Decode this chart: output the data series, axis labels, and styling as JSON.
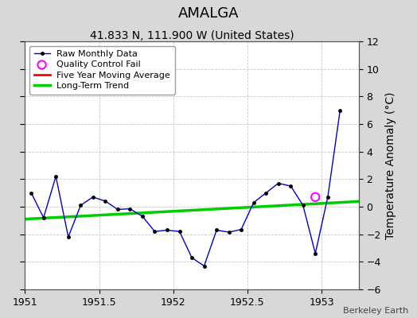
{
  "title": "AMALGA",
  "subtitle": "41.833 N, 111.900 W (United States)",
  "attribution": "Berkeley Earth",
  "ylabel_right": "Temperature Anomaly (°C)",
  "xlim": [
    1951.0,
    1953.25
  ],
  "ylim": [
    -6,
    12
  ],
  "yticks": [
    -6,
    -4,
    -2,
    0,
    2,
    4,
    6,
    8,
    10,
    12
  ],
  "xticks": [
    1951,
    1951.5,
    1952,
    1952.5,
    1953
  ],
  "xticklabels": [
    "1951",
    "1951.5",
    "1952",
    "1952.5",
    "1953"
  ],
  "background_color": "#d8d8d8",
  "plot_bg_color": "#ffffff",
  "raw_x": [
    1951.042,
    1951.125,
    1951.208,
    1951.292,
    1951.375,
    1951.458,
    1951.542,
    1951.625,
    1951.708,
    1951.792,
    1951.875,
    1951.958,
    1952.042,
    1952.125,
    1952.208,
    1952.292,
    1952.375,
    1952.458,
    1952.542,
    1952.625,
    1952.708,
    1952.792,
    1952.875,
    1952.958,
    1953.042,
    1953.125
  ],
  "raw_y": [
    1.0,
    -0.8,
    2.2,
    -2.2,
    0.1,
    0.7,
    0.4,
    -0.2,
    -0.15,
    -0.7,
    -1.8,
    -1.7,
    -1.8,
    -3.7,
    -4.3,
    -1.7,
    -1.85,
    -1.65,
    0.3,
    1.0,
    1.7,
    1.5,
    0.1,
    -3.4,
    0.7,
    7.0
  ],
  "qc_fail_x": [
    1952.958
  ],
  "qc_fail_y": [
    0.7
  ],
  "trend_x": [
    1951.0,
    1953.25
  ],
  "trend_y": [
    -0.9,
    0.38
  ],
  "raw_line_color": "#0000cc",
  "raw_marker_color": "#000000",
  "qc_color": "#ff00ff",
  "trend_color": "#00cc00",
  "moving_avg_color": "#ff0000",
  "grid_color": "#bbbbbb",
  "legend_bg": "#ffffff",
  "title_fontsize": 13,
  "subtitle_fontsize": 10,
  "tick_fontsize": 9,
  "ylabel_fontsize": 10,
  "attribution_fontsize": 8
}
